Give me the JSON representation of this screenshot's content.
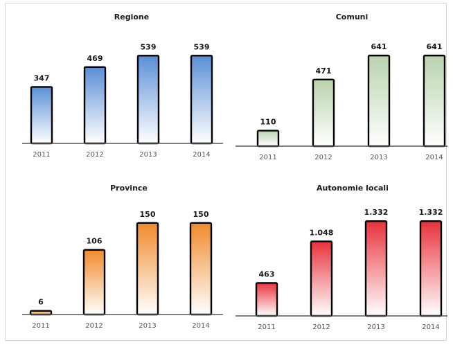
{
  "chart_data": [
    {
      "type": "bar",
      "title": "Regione",
      "categories": [
        "2011",
        "2012",
        "2013",
        "2014"
      ],
      "values": [
        347,
        469,
        539,
        539
      ],
      "value_labels": [
        "347",
        "469",
        "539",
        "539"
      ],
      "ylim": [
        0,
        600
      ],
      "grid": false,
      "color": "#5b8fd6"
    },
    {
      "type": "bar",
      "title": "Comuni",
      "categories": [
        "2011",
        "2012",
        "2013",
        "2014"
      ],
      "values": [
        110,
        471,
        641,
        641
      ],
      "value_labels": [
        "110",
        "471",
        "641",
        "641"
      ],
      "ylim": [
        0,
        720
      ],
      "grid": false,
      "color": "#b9d3ad"
    },
    {
      "type": "bar",
      "title": "Province",
      "categories": [
        "2011",
        "2012",
        "2013",
        "2014"
      ],
      "values": [
        6,
        106,
        150,
        150
      ],
      "value_labels": [
        "6",
        "106",
        "150",
        "150"
      ],
      "ylim": [
        0,
        168
      ],
      "grid": false,
      "color": "#f08a2c"
    },
    {
      "type": "bar",
      "title": "Autonomie locali",
      "categories": [
        "2011",
        "2012",
        "2013",
        "2014"
      ],
      "values": [
        463,
        1048,
        1332,
        1332
      ],
      "value_labels": [
        "463",
        "1.048",
        "1.332",
        "1.332"
      ],
      "ylim": [
        0,
        1500
      ],
      "grid": false,
      "color": "#e8323c"
    }
  ]
}
